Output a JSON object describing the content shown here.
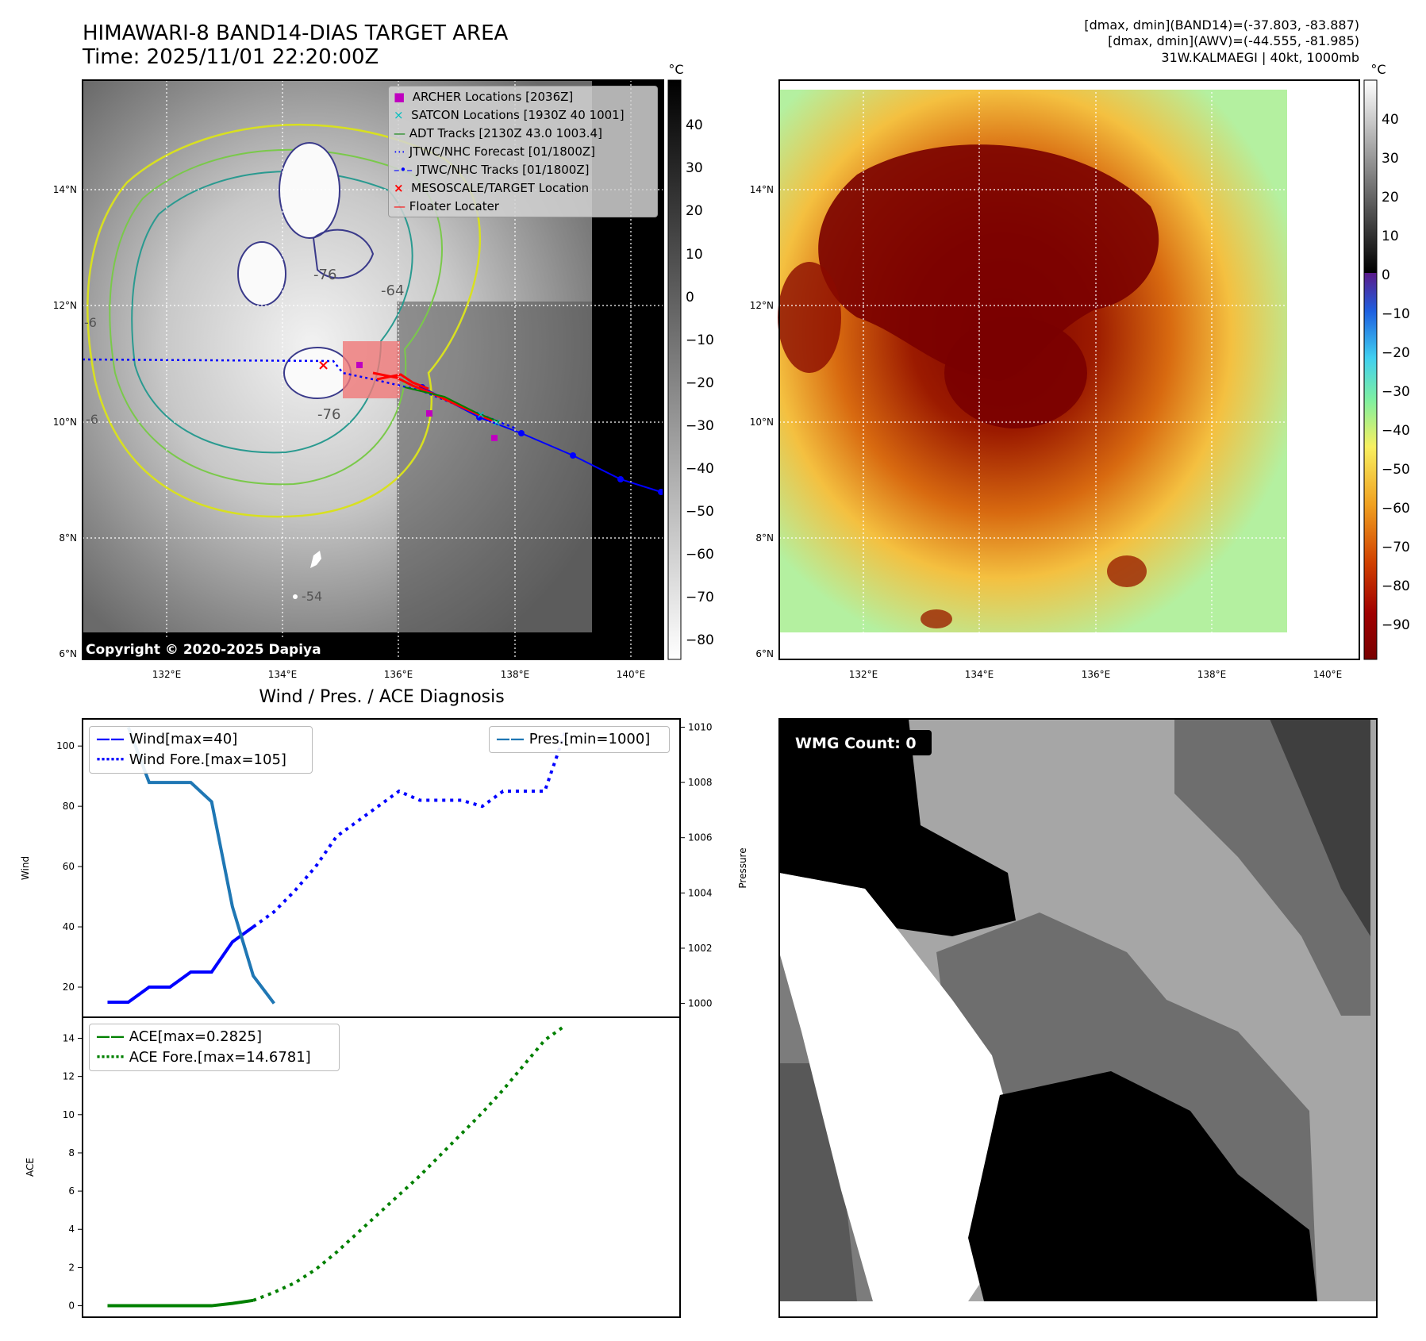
{
  "header": {
    "title_line1": "HIMAWARI-8 BAND14-DIAS TARGET AREA",
    "title_line2": "Time: 2025/11/01 22:20:00Z",
    "info_line1": "[dmax, dmin](BAND14)=(-37.803, -83.887)",
    "info_line2": "[dmax, dmin](AWV)=(-44.555, -81.985)",
    "info_line3": "31W.KALMAEGI | 40kt, 1000mb"
  },
  "map_axes": {
    "lat_labels": [
      "14°N",
      "12°N",
      "10°N",
      "8°N",
      "6°N"
    ],
    "lon_labels": [
      "132°E",
      "134°E",
      "136°E",
      "138°E",
      "140°E"
    ]
  },
  "map_left": {
    "copyright": "Copyright © 2020-2025 Dapiya",
    "contour_labels": [
      "-76",
      "-64",
      "-76",
      "-6",
      "-6",
      "-54"
    ],
    "legend": [
      {
        "label": "ARCHER Locations [2036Z]",
        "marker": "square",
        "color": "#bf00bf"
      },
      {
        "label": "SATCON Locations [1930Z 40 1001]",
        "marker": "x",
        "color": "#00bfbf"
      },
      {
        "label": "ADT Tracks [2130Z 43.0 1003.4]",
        "marker": "line",
        "color": "#008000"
      },
      {
        "label": "JTWC/NHC Forecast [01/1800Z]",
        "marker": "dotted",
        "color": "#0000ff"
      },
      {
        "label": "JTWC/NHC Tracks [01/1800Z]",
        "marker": "line-dot",
        "color": "#0000ff"
      },
      {
        "label": "MESOSCALE/TARGET Location",
        "marker": "x",
        "color": "#ff0000"
      },
      {
        "label": "Floater Locater",
        "marker": "line",
        "color": "#ff0000"
      }
    ],
    "colorbar": {
      "unit": "°C",
      "ticks": [
        "40",
        "30",
        "20",
        "10",
        "0",
        "−10",
        "−20",
        "−30",
        "−40",
        "−50",
        "−60",
        "−70",
        "−80"
      ]
    }
  },
  "map_right": {
    "colorbar": {
      "unit": "°C",
      "ticks": [
        "40",
        "30",
        "20",
        "10",
        "0",
        "−10",
        "−20",
        "−30",
        "−40",
        "−50",
        "−60",
        "−70",
        "−80",
        "−90"
      ]
    }
  },
  "diagnosis_title": "Wind / Pres. / ACE Diagnosis",
  "wmg": {
    "label": "WMG Count: 0"
  },
  "chart_data": [
    {
      "type": "line",
      "title": "Wind / Pres. / ACE Diagnosis",
      "ylabel": "Wind",
      "ylabel_right": "Pressure",
      "ylim": [
        10,
        109
      ],
      "ylim_right": [
        999.5,
        1010.3
      ],
      "y_ticks": [
        "100",
        "80",
        "60",
        "40",
        "20"
      ],
      "y_ticks_right": [
        "1010",
        "1008",
        "1006",
        "1004",
        "1002",
        "1000"
      ],
      "series": [
        {
          "name": "Wind[max=40]",
          "style": "solid",
          "color": "#0000ff",
          "axis": "left",
          "x": [
            0,
            1,
            2,
            3,
            4,
            5,
            6,
            7
          ],
          "values": [
            15,
            15,
            20,
            20,
            25,
            25,
            35,
            40
          ]
        },
        {
          "name": "Wind Fore.[max=105]",
          "style": "dotted",
          "color": "#0000ff",
          "axis": "left",
          "x": [
            7,
            8,
            9,
            10,
            11,
            12,
            13,
            14,
            15,
            16,
            17,
            18,
            19,
            20,
            21,
            22
          ],
          "values": [
            40,
            45,
            52,
            60,
            70,
            75,
            80,
            85,
            82,
            82,
            82,
            80,
            85,
            85,
            85,
            105
          ]
        },
        {
          "name": "Pres.[min=1000]",
          "style": "solid",
          "color": "#1f77b4",
          "axis": "right",
          "x": [
            1,
            2,
            3,
            4,
            5,
            6,
            7,
            8
          ],
          "values": [
            1010,
            1008,
            1008,
            1008,
            1007.3,
            1003.5,
            1001,
            1000
          ]
        }
      ],
      "legend_left": [
        "Wind[max=40]",
        "Wind Fore.[max=105]"
      ],
      "legend_right": [
        "Pres.[min=1000]"
      ]
    },
    {
      "type": "line",
      "ylabel": "ACE",
      "ylim": [
        -0.6,
        15.1
      ],
      "y_ticks": [
        "14",
        "12",
        "10",
        "8",
        "6",
        "4",
        "2",
        "0"
      ],
      "series": [
        {
          "name": "ACE[max=0.2825]",
          "style": "solid",
          "color": "#008000",
          "x": [
            0,
            1,
            2,
            3,
            4,
            5,
            6,
            7
          ],
          "values": [
            0,
            0,
            0,
            0,
            0,
            0,
            0.12,
            0.28
          ]
        },
        {
          "name": "ACE Fore.[max=14.6781]",
          "style": "dotted",
          "color": "#008000",
          "x": [
            7,
            8,
            9,
            10,
            11,
            12,
            13,
            14,
            15,
            16,
            17,
            18,
            19,
            20,
            21,
            22
          ],
          "values": [
            0.28,
            0.7,
            1.2,
            1.9,
            2.8,
            3.8,
            4.8,
            5.8,
            6.8,
            7.9,
            9.0,
            10.1,
            11.3,
            12.6,
            13.9,
            14.68
          ]
        }
      ],
      "legend": [
        "ACE[max=0.2825]",
        "ACE Fore.[max=14.6781]"
      ]
    }
  ]
}
